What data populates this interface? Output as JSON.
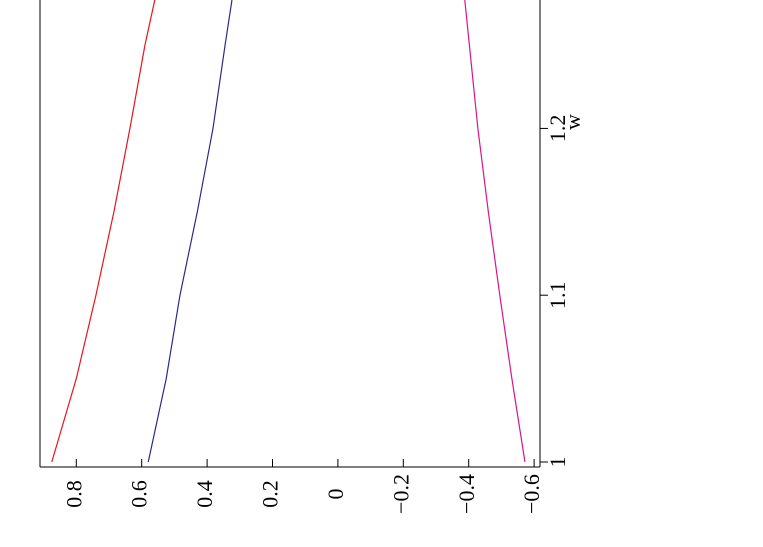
{
  "chart_data": {
    "type": "line",
    "x_label": "w",
    "x": [
      1,
      1.05,
      1.1,
      1.15,
      1.2,
      1.25,
      1.277
    ],
    "xlim": [
      0.997,
      1.277
    ],
    "xticks": [
      1,
      1.1,
      1.2
    ],
    "ylim": [
      -0.618,
      0.911
    ],
    "yticks": [
      0.8,
      0.6,
      0.4,
      0.2,
      0,
      {
        "value": -0.2,
        "label": "−0.2"
      },
      {
        "value": -0.4,
        "label": "−0.4"
      },
      {
        "value": -0.6,
        "label": "−0.6"
      }
    ],
    "series": [
      {
        "color": "#e8141c",
        "values": [
          0.875,
          0.8,
          0.74,
          0.685,
          0.636,
          0.59,
          0.56
        ]
      },
      {
        "color": "#2a2a8c",
        "values": [
          0.58,
          0.525,
          0.483,
          0.43,
          0.382,
          0.345,
          0.324
        ]
      },
      {
        "color": "#d6148c",
        "values": [
          -0.572,
          -0.532,
          -0.495,
          -0.46,
          -0.428,
          -0.402,
          -0.388
        ]
      }
    ]
  }
}
